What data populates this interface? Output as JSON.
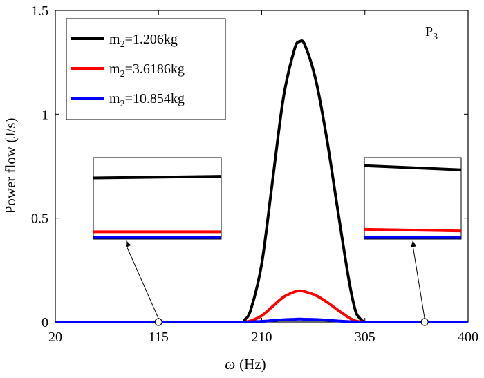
{
  "chart_data": {
    "type": "line",
    "xlabel_symbol": "ω",
    "xlabel_unit": "(Hz)",
    "ylabel": "Power flow (J/s)",
    "panel_label": "P3",
    "panel_label_main": "P",
    "panel_label_sub": "3",
    "xlim": [
      20,
      400
    ],
    "ylim": [
      0,
      1.5
    ],
    "x_ticks": [
      20,
      115,
      210,
      305,
      400
    ],
    "y_ticks": [
      0,
      0.5,
      1,
      1.5
    ],
    "y_tick_labels": [
      "0",
      "0.5",
      "1",
      "1.5"
    ],
    "grid": false,
    "legend_position": "top-left",
    "x": [
      20,
      115,
      190,
      194,
      200,
      210,
      220,
      230,
      240,
      245,
      250,
      260,
      270,
      280,
      290,
      296,
      300,
      305,
      315,
      400
    ],
    "series": [
      {
        "name": "m2=1.206kg",
        "name_main": "m",
        "name_sub": "2",
        "name_rest": "=1.206kg",
        "color": "#000000",
        "values": [
          0,
          0,
          0,
          0.01,
          0.06,
          0.28,
          0.68,
          1.08,
          1.31,
          1.35,
          1.33,
          1.16,
          0.88,
          0.54,
          0.21,
          0.06,
          0.02,
          0.0,
          0,
          0
        ]
      },
      {
        "name": "m2=3.6186kg",
        "name_main": "m",
        "name_sub": "2",
        "name_rest": "=3.6186kg",
        "color": "#ff0000",
        "values": [
          0,
          0,
          0,
          0,
          0.006,
          0.03,
          0.075,
          0.12,
          0.145,
          0.15,
          0.146,
          0.128,
          0.096,
          0.058,
          0.022,
          0.006,
          0.002,
          0,
          0,
          0
        ]
      },
      {
        "name": "m2=10.854kg",
        "name_main": "m",
        "name_sub": "2",
        "name_rest": "=10.854kg",
        "color": "#0000ff",
        "values": [
          0,
          0,
          0,
          0,
          0.001,
          0.003,
          0.007,
          0.011,
          0.013,
          0.014,
          0.013,
          0.012,
          0.009,
          0.005,
          0.002,
          0.001,
          0,
          0,
          0,
          0
        ]
      }
    ],
    "insets": [
      {
        "name": "left-zoom-inset",
        "points_to_x": 115,
        "lines": [
          {
            "color": "#000000",
            "level_left": 0.75,
            "level_right": 0.77
          },
          {
            "color": "#ff0000",
            "level_left": 0.09,
            "level_right": 0.09
          },
          {
            "color": "#0000ff",
            "level_left": 0.02,
            "level_right": 0.02
          }
        ]
      },
      {
        "name": "right-zoom-inset",
        "points_to_x": 360,
        "lines": [
          {
            "color": "#000000",
            "level_left": 0.9,
            "level_right": 0.85
          },
          {
            "color": "#ff0000",
            "level_left": 0.12,
            "level_right": 0.1
          },
          {
            "color": "#0000ff",
            "level_left": 0.02,
            "level_right": 0.02
          }
        ]
      }
    ]
  }
}
